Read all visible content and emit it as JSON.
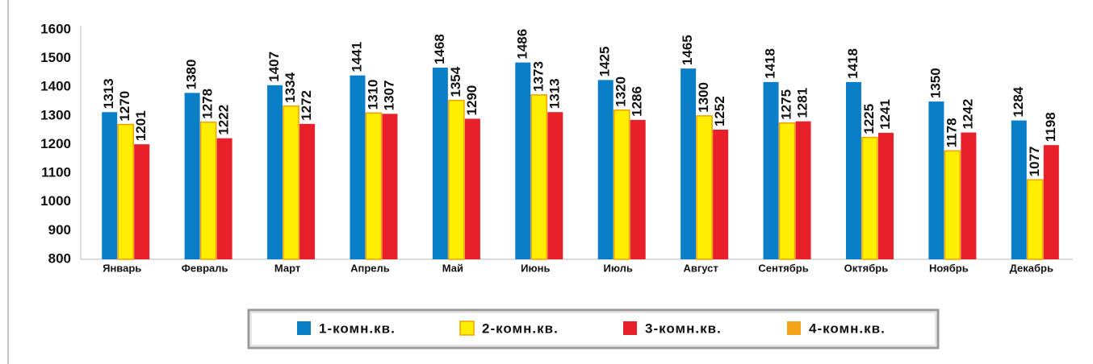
{
  "chart_data": {
    "type": "bar",
    "categories": [
      "Январь",
      "Февраль",
      "Март",
      "Апрель",
      "Май",
      "Июнь",
      "Июль",
      "Август",
      "Сентябрь",
      "Октябрь",
      "Ноябрь",
      "Декабрь"
    ],
    "series": [
      {
        "name": "1-комн.кв.",
        "color": "#0a7fc8",
        "values": [
          1313,
          1380,
          1407,
          1441,
          1468,
          1486,
          1425,
          1465,
          1418,
          1418,
          1350,
          1284
        ]
      },
      {
        "name": "2-комн.кв.",
        "color": "#ffee00",
        "values": [
          1270,
          1278,
          1334,
          1310,
          1354,
          1373,
          1320,
          1300,
          1275,
          1225,
          1178,
          1077
        ]
      },
      {
        "name": "3-комн.кв.",
        "color": "#e8202a",
        "values": [
          1201,
          1222,
          1272,
          1307,
          1290,
          1313,
          1286,
          1252,
          1281,
          1241,
          1242,
          1198
        ]
      },
      {
        "name": "4-комн.кв.",
        "color": "#f5a31a",
        "values": [
          null,
          null,
          null,
          null,
          null,
          null,
          null,
          null,
          null,
          null,
          null,
          null
        ]
      }
    ],
    "ylim": [
      800,
      1600
    ],
    "yticks": [
      800,
      900,
      1000,
      1100,
      1200,
      1300,
      1400,
      1500,
      1600
    ],
    "grid": false
  }
}
